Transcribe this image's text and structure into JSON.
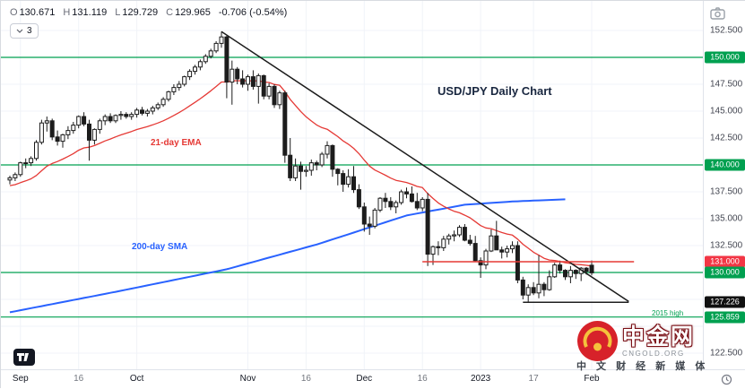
{
  "title": "USD/JPY Daily Chart",
  "toolbar": {
    "ohlc_items": [
      {
        "label": "O",
        "value": "130.671"
      },
      {
        "label": "H",
        "value": "131.119"
      },
      {
        "label": "L",
        "value": "129.729"
      },
      {
        "label": "C",
        "value": "129.965"
      }
    ],
    "change": "-0.706 (-0.54%)",
    "indicators_count": "3"
  },
  "annotations": {
    "ema_label": "21-day EMA",
    "sma_label": "200-day SMA",
    "high_2015_label": "2015 high"
  },
  "watermark": {
    "brand": "中金网",
    "site": "CNGOLD.ORG",
    "tagline": "中 文 财 经 新 媒 体"
  },
  "colors": {
    "green_line": "#00a050",
    "red_line": "#e53935",
    "black_line": "#1f1f1f",
    "sma": "#2962ff",
    "ema": "#e53935",
    "candle": "#1c1c1c",
    "grid": "#f0f3f8",
    "badge_green": "#00a050",
    "badge_red": "#f23645",
    "badge_black": "#111111"
  },
  "y_axis": {
    "ticks": [
      {
        "text": "152.500",
        "price": 152.5
      },
      {
        "text": "147.500",
        "price": 147.5
      },
      {
        "text": "145.000",
        "price": 145.0
      },
      {
        "text": "142.500",
        "price": 142.5
      },
      {
        "text": "137.500",
        "price": 137.5
      },
      {
        "text": "135.000",
        "price": 135.0
      },
      {
        "text": "132.500",
        "price": 132.5
      },
      {
        "text": "122.500",
        "price": 122.5
      }
    ],
    "badges": [
      {
        "text": "150.000",
        "price": 150.0,
        "type": "green"
      },
      {
        "text": "140.000",
        "price": 140.0,
        "type": "green"
      },
      {
        "text": "131.000",
        "price": 131.0,
        "type": "red"
      },
      {
        "text": "130.000",
        "price": 130.0,
        "type": "green"
      },
      {
        "text": "127.226",
        "price": 127.226,
        "type": "black"
      },
      {
        "text": "125.859",
        "price": 125.859,
        "type": "green"
      }
    ]
  },
  "x_axis": {
    "labels": [
      {
        "text": "Sep",
        "index": 2,
        "major": true
      },
      {
        "text": "16",
        "index": 13,
        "major": false
      },
      {
        "text": "Oct",
        "index": 24,
        "major": true
      },
      {
        "text": "Nov",
        "index": 45,
        "major": true
      },
      {
        "text": "16",
        "index": 56,
        "major": false
      },
      {
        "text": "Dec",
        "index": 67,
        "major": true
      },
      {
        "text": "16",
        "index": 78,
        "major": false
      },
      {
        "text": "2023",
        "index": 89,
        "major": true
      },
      {
        "text": "17",
        "index": 99,
        "major": false
      },
      {
        "text": "Feb",
        "index": 110,
        "major": true
      }
    ]
  },
  "chart_data": {
    "type": "candlestick",
    "symbol": "USD/JPY",
    "timeframe": "Daily",
    "title": "USD/JPY Daily Chart",
    "ylim": [
      121.0,
      155.25
    ],
    "x_slots": 133,
    "candles": [
      [
        138.6,
        139.0,
        138.2,
        138.8
      ],
      [
        138.8,
        139.3,
        138.5,
        139.1
      ],
      [
        139.1,
        140.3,
        138.9,
        140.2
      ],
      [
        140.2,
        140.6,
        139.7,
        140.2
      ],
      [
        140.2,
        140.8,
        139.9,
        140.6
      ],
      [
        140.6,
        142.3,
        140.4,
        142.1
      ],
      [
        142.1,
        144.2,
        141.9,
        143.9
      ],
      [
        143.9,
        144.5,
        143.1,
        144.1
      ],
      [
        144.1,
        144.3,
        142.3,
        142.6
      ],
      [
        142.6,
        143.2,
        141.8,
        142.2
      ],
      [
        142.2,
        142.9,
        141.6,
        142.8
      ],
      [
        142.8,
        143.6,
        142.4,
        143.2
      ],
      [
        143.2,
        144.0,
        142.9,
        143.7
      ],
      [
        143.7,
        144.6,
        143.4,
        144.5
      ],
      [
        144.5,
        144.9,
        143.6,
        143.8
      ],
      [
        143.8,
        144.2,
        140.4,
        142.3
      ],
      [
        142.3,
        143.4,
        141.9,
        143.3
      ],
      [
        143.3,
        144.3,
        142.9,
        144.1
      ],
      [
        144.1,
        144.7,
        143.7,
        144.5
      ],
      [
        144.5,
        144.8,
        143.9,
        144.1
      ],
      [
        144.1,
        144.7,
        143.9,
        144.6
      ],
      [
        144.6,
        145.0,
        144.2,
        144.7
      ],
      [
        144.7,
        144.9,
        144.3,
        144.5
      ],
      [
        144.5,
        144.9,
        144.2,
        144.7
      ],
      [
        144.7,
        145.3,
        144.4,
        145.1
      ],
      [
        145.1,
        145.4,
        144.6,
        144.8
      ],
      [
        144.8,
        145.2,
        144.5,
        145.0
      ],
      [
        145.0,
        145.5,
        144.7,
        145.3
      ],
      [
        145.3,
        145.8,
        145.1,
        145.6
      ],
      [
        145.6,
        146.3,
        145.4,
        146.1
      ],
      [
        146.1,
        146.9,
        145.9,
        146.8
      ],
      [
        146.8,
        147.5,
        146.5,
        147.2
      ],
      [
        147.2,
        147.8,
        146.9,
        147.5
      ],
      [
        147.5,
        148.3,
        147.3,
        148.2
      ],
      [
        148.2,
        148.9,
        147.9,
        148.7
      ],
      [
        148.7,
        149.3,
        148.4,
        149.1
      ],
      [
        149.1,
        149.8,
        148.8,
        149.6
      ],
      [
        149.6,
        150.3,
        149.4,
        150.1
      ],
      [
        150.1,
        150.8,
        149.9,
        150.6
      ],
      [
        150.6,
        151.5,
        150.4,
        151.3
      ],
      [
        151.3,
        152.4,
        150.9,
        151.9
      ],
      [
        151.9,
        152.0,
        146.2,
        147.7
      ],
      [
        147.7,
        149.7,
        145.6,
        148.9
      ],
      [
        148.9,
        149.1,
        147.5,
        148.0
      ],
      [
        148.0,
        148.8,
        147.2,
        147.5
      ],
      [
        147.5,
        148.4,
        146.9,
        148.2
      ],
      [
        148.2,
        148.8,
        147.0,
        147.3
      ],
      [
        147.3,
        148.5,
        145.7,
        148.3
      ],
      [
        148.3,
        148.4,
        146.1,
        146.4
      ],
      [
        146.4,
        147.6,
        146.1,
        147.3
      ],
      [
        147.3,
        147.5,
        145.3,
        145.6
      ],
      [
        145.6,
        146.9,
        145.2,
        146.7
      ],
      [
        146.7,
        146.9,
        140.2,
        140.9
      ],
      [
        140.9,
        142.5,
        138.5,
        138.8
      ],
      [
        138.8,
        140.6,
        138.5,
        139.9
      ],
      [
        139.9,
        140.3,
        137.7,
        139.4
      ],
      [
        139.4,
        139.9,
        138.9,
        139.5
      ],
      [
        139.5,
        140.5,
        139.0,
        140.2
      ],
      [
        140.2,
        140.4,
        139.5,
        140.0
      ],
      [
        140.0,
        141.2,
        139.8,
        141.0
      ],
      [
        141.0,
        142.2,
        140.6,
        141.8
      ],
      [
        141.8,
        141.9,
        138.9,
        139.6
      ],
      [
        139.6,
        139.7,
        138.1,
        139.2
      ],
      [
        139.2,
        139.5,
        137.5,
        138.2
      ],
      [
        138.2,
        139.6,
        137.9,
        138.9
      ],
      [
        138.9,
        139.9,
        137.4,
        137.7
      ],
      [
        137.7,
        138.2,
        135.9,
        136.1
      ],
      [
        136.1,
        136.5,
        133.8,
        134.5
      ],
      [
        134.5,
        135.2,
        133.5,
        134.3
      ],
      [
        134.3,
        136.0,
        134.1,
        135.8
      ],
      [
        135.8,
        137.0,
        135.6,
        136.9
      ],
      [
        136.9,
        137.4,
        136.0,
        136.6
      ],
      [
        136.6,
        137.0,
        135.8,
        136.1
      ],
      [
        136.1,
        136.7,
        135.5,
        136.5
      ],
      [
        136.5,
        137.7,
        136.3,
        137.5
      ],
      [
        137.5,
        137.9,
        136.9,
        137.3
      ],
      [
        137.3,
        138.0,
        136.5,
        136.6
      ],
      [
        136.6,
        137.4,
        135.8,
        136.0
      ],
      [
        136.0,
        137.0,
        135.7,
        136.8
      ],
      [
        136.8,
        137.4,
        130.6,
        131.7
      ],
      [
        131.7,
        132.5,
        130.7,
        132.4
      ],
      [
        132.4,
        132.9,
        131.6,
        132.3
      ],
      [
        132.3,
        133.4,
        132.0,
        133.1
      ],
      [
        133.1,
        133.6,
        132.6,
        133.4
      ],
      [
        133.4,
        133.9,
        132.9,
        133.5
      ],
      [
        133.5,
        134.4,
        133.3,
        134.2
      ],
      [
        134.2,
        134.5,
        132.9,
        133.0
      ],
      [
        133.0,
        133.5,
        132.5,
        132.7
      ],
      [
        132.7,
        133.4,
        131.0,
        131.1
      ],
      [
        131.1,
        131.4,
        129.5,
        130.7
      ],
      [
        130.7,
        132.2,
        130.3,
        132.0
      ],
      [
        132.0,
        134.0,
        131.9,
        133.4
      ],
      [
        133.4,
        134.8,
        132.1,
        132.1
      ],
      [
        132.1,
        132.4,
        131.3,
        131.9
      ],
      [
        131.9,
        132.5,
        131.4,
        132.2
      ],
      [
        132.2,
        132.9,
        131.8,
        132.5
      ],
      [
        132.5,
        132.9,
        129.0,
        129.3
      ],
      [
        129.3,
        129.6,
        127.5,
        127.9
      ],
      [
        127.9,
        128.9,
        127.2,
        128.6
      ],
      [
        128.6,
        129.1,
        127.9,
        128.1
      ],
      [
        128.1,
        131.6,
        127.6,
        128.9
      ],
      [
        128.9,
        129.1,
        127.8,
        128.4
      ],
      [
        128.4,
        130.2,
        128.3,
        129.6
      ],
      [
        129.6,
        130.9,
        129.5,
        130.7
      ],
      [
        130.7,
        131.1,
        129.9,
        130.2
      ],
      [
        130.2,
        130.3,
        129.3,
        129.6
      ],
      [
        129.6,
        130.6,
        129.0,
        130.2
      ],
      [
        130.2,
        130.3,
        129.4,
        129.9
      ],
      [
        129.9,
        130.5,
        129.2,
        130.4
      ],
      [
        130.4,
        130.5,
        129.8,
        130.1
      ],
      [
        130.671,
        131.119,
        129.729,
        129.965
      ]
    ],
    "ema": {
      "period": 21,
      "seed": 138.0,
      "label": "21-day EMA"
    },
    "sma200_anchors": [
      [
        0,
        126.3
      ],
      [
        20,
        128.2
      ],
      [
        41,
        130.3
      ],
      [
        58,
        132.6
      ],
      [
        75,
        135.3
      ],
      [
        86,
        136.3
      ],
      [
        95,
        136.6
      ],
      [
        105,
        136.8
      ]
    ],
    "sma_label": "200-day SMA",
    "trendline": {
      "i1": 40,
      "p1": 152.4,
      "i2": 117,
      "p2": 127.3
    },
    "hlines": [
      {
        "price": 150.0,
        "color": "green",
        "full": true
      },
      {
        "price": 140.0,
        "color": "green",
        "full": true
      },
      {
        "price": 130.0,
        "color": "green",
        "full": true
      },
      {
        "price": 125.859,
        "color": "green",
        "full": true,
        "label": "2015 high"
      },
      {
        "price": 131.0,
        "color": "red",
        "i1": 78,
        "i2": 118
      },
      {
        "price": 127.226,
        "color": "black",
        "i1": 97,
        "i2": 117
      }
    ],
    "grid_v_indices": [
      2,
      13,
      24,
      45,
      56,
      67,
      78,
      89,
      99,
      110
    ],
    "grid_h_prices": [
      152.5,
      150,
      147.5,
      145,
      142.5,
      140,
      137.5,
      135,
      132.5,
      130,
      127.5,
      125,
      122.5
    ]
  }
}
